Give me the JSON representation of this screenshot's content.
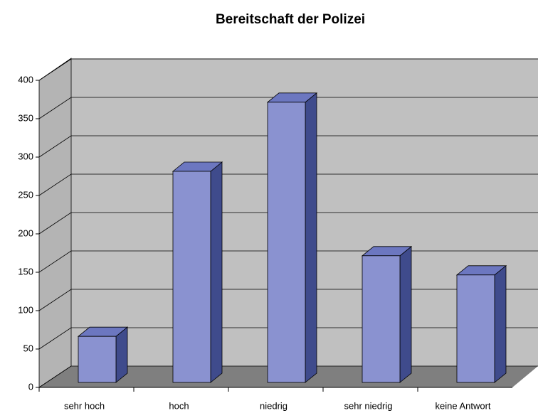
{
  "chart_data": {
    "type": "bar3d",
    "title": "Bereitschaft der Polizei",
    "categories": [
      "sehr hoch",
      "hoch",
      "niedrig",
      "sehr niedrig",
      "keine Antwort"
    ],
    "values": [
      60,
      275,
      365,
      165,
      140
    ],
    "color": "#8a92d0",
    "ylim": [
      0,
      400
    ],
    "yticks": [
      0,
      50,
      100,
      150,
      200,
      250,
      300,
      350,
      400
    ],
    "grid": true
  }
}
